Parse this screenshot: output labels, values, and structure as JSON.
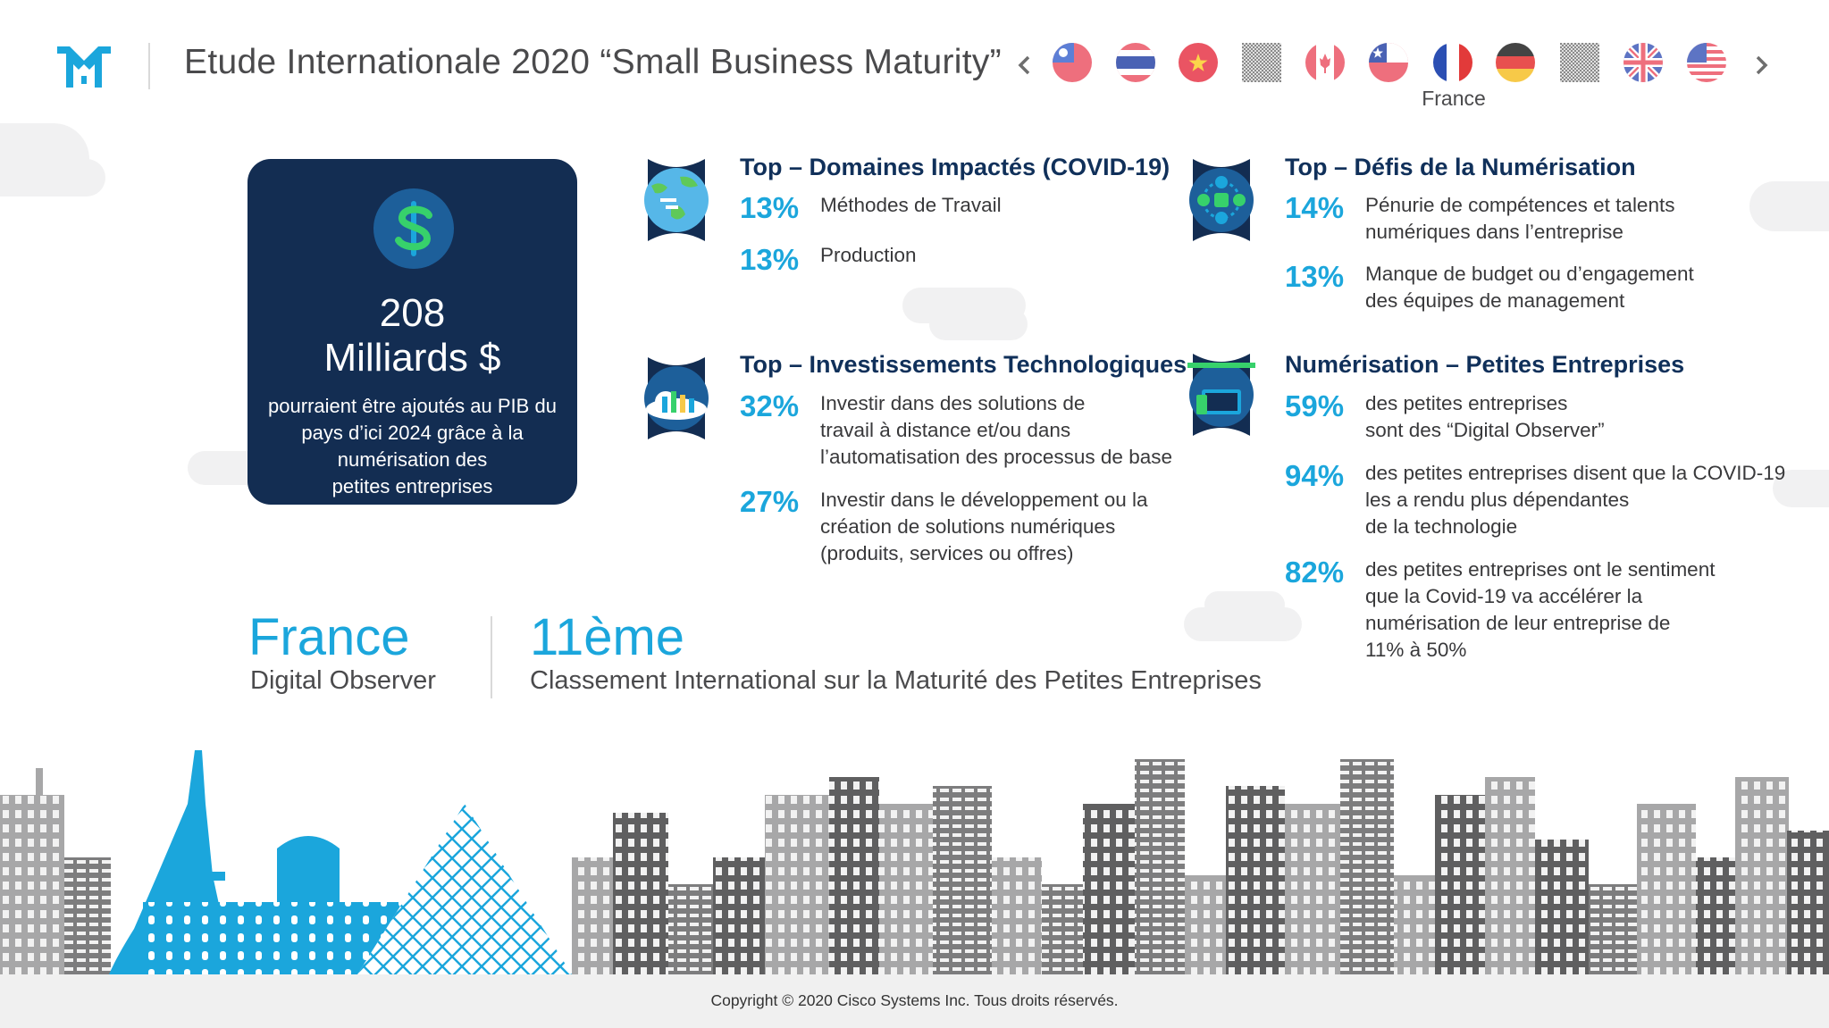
{
  "header": {
    "title": "Etude Internationale 2020 “Small Business Maturity”",
    "prev_label": "‹",
    "next_label": "›",
    "selected_flag_label": "France",
    "flags": [
      "taiwan-flag-icon",
      "thailand-flag-icon",
      "vietnam-flag-icon",
      "placeholder-flag-icon",
      "canada-flag-icon",
      "chile-flag-icon",
      "france-flag-icon",
      "germany-flag-icon",
      "placeholder-flag-icon",
      "uk-flag-icon",
      "usa-flag-icon"
    ]
  },
  "money_card": {
    "amount_line1": "208",
    "amount_line2": "Milliards $",
    "desc_line1": "pourraient être ajoutés au PIB du",
    "desc_line2": "pays d’ici 2024 grâce à la",
    "desc_line3": "numérisation des",
    "desc_line4": "petites entreprises",
    "icon": "dollar-icon"
  },
  "domains": {
    "title": "Top – Domaines Impactés (COVID-19)",
    "items": [
      {
        "pct": "13%",
        "lines": [
          "Méthodes de Travail"
        ]
      },
      {
        "pct": "13%",
        "lines": [
          "Production"
        ]
      }
    ]
  },
  "challenges": {
    "title": "Top – Défis de la Numérisation",
    "items": [
      {
        "pct": "14%",
        "lines": [
          "Pénurie de compétences et talents",
          "numériques dans l’entreprise"
        ]
      },
      {
        "pct": "13%",
        "lines": [
          "Manque de budget ou d’engagement",
          "des équipes de management"
        ]
      }
    ]
  },
  "investments": {
    "title": "Top – Investissements Technologiques",
    "items": [
      {
        "pct": "32%",
        "lines": [
          "Investir dans des solutions de",
          "travail à distance et/ou dans",
          "l’automatisation des processus de base"
        ]
      },
      {
        "pct": "27%",
        "lines": [
          "Investir dans le développement ou la",
          "création de solutions numériques",
          "(produits, services ou offres)"
        ]
      }
    ]
  },
  "digitization": {
    "title": "Numérisation – Petites Entreprises",
    "items": [
      {
        "pct": "59%",
        "lines": [
          "des petites entreprises",
          "sont des “Digital Observer”"
        ]
      },
      {
        "pct": "94%",
        "lines": [
          "des petites entreprises disent que la COVID-19",
          "les a rendu plus dépendantes",
          "de la technologie"
        ]
      },
      {
        "pct": "82%",
        "lines": [
          "des petites entreprises ont le sentiment",
          "que la Covid-19 va accélérer la",
          "numérisation de leur entreprise de",
          "11% à 50%"
        ]
      }
    ]
  },
  "country": {
    "name": "France",
    "segment": "Digital Observer"
  },
  "ranking": {
    "rank": "11ème",
    "label": "Classement International sur la Maturité des Petites Entreprises"
  },
  "footer": {
    "copyright": "Copyright © 2020 Cisco Systems Inc. Tous droits réservés."
  },
  "colors": {
    "navy": "#132d52",
    "accent": "#1ba6dc",
    "title_navy": "#10305a",
    "text": "#39393b"
  }
}
